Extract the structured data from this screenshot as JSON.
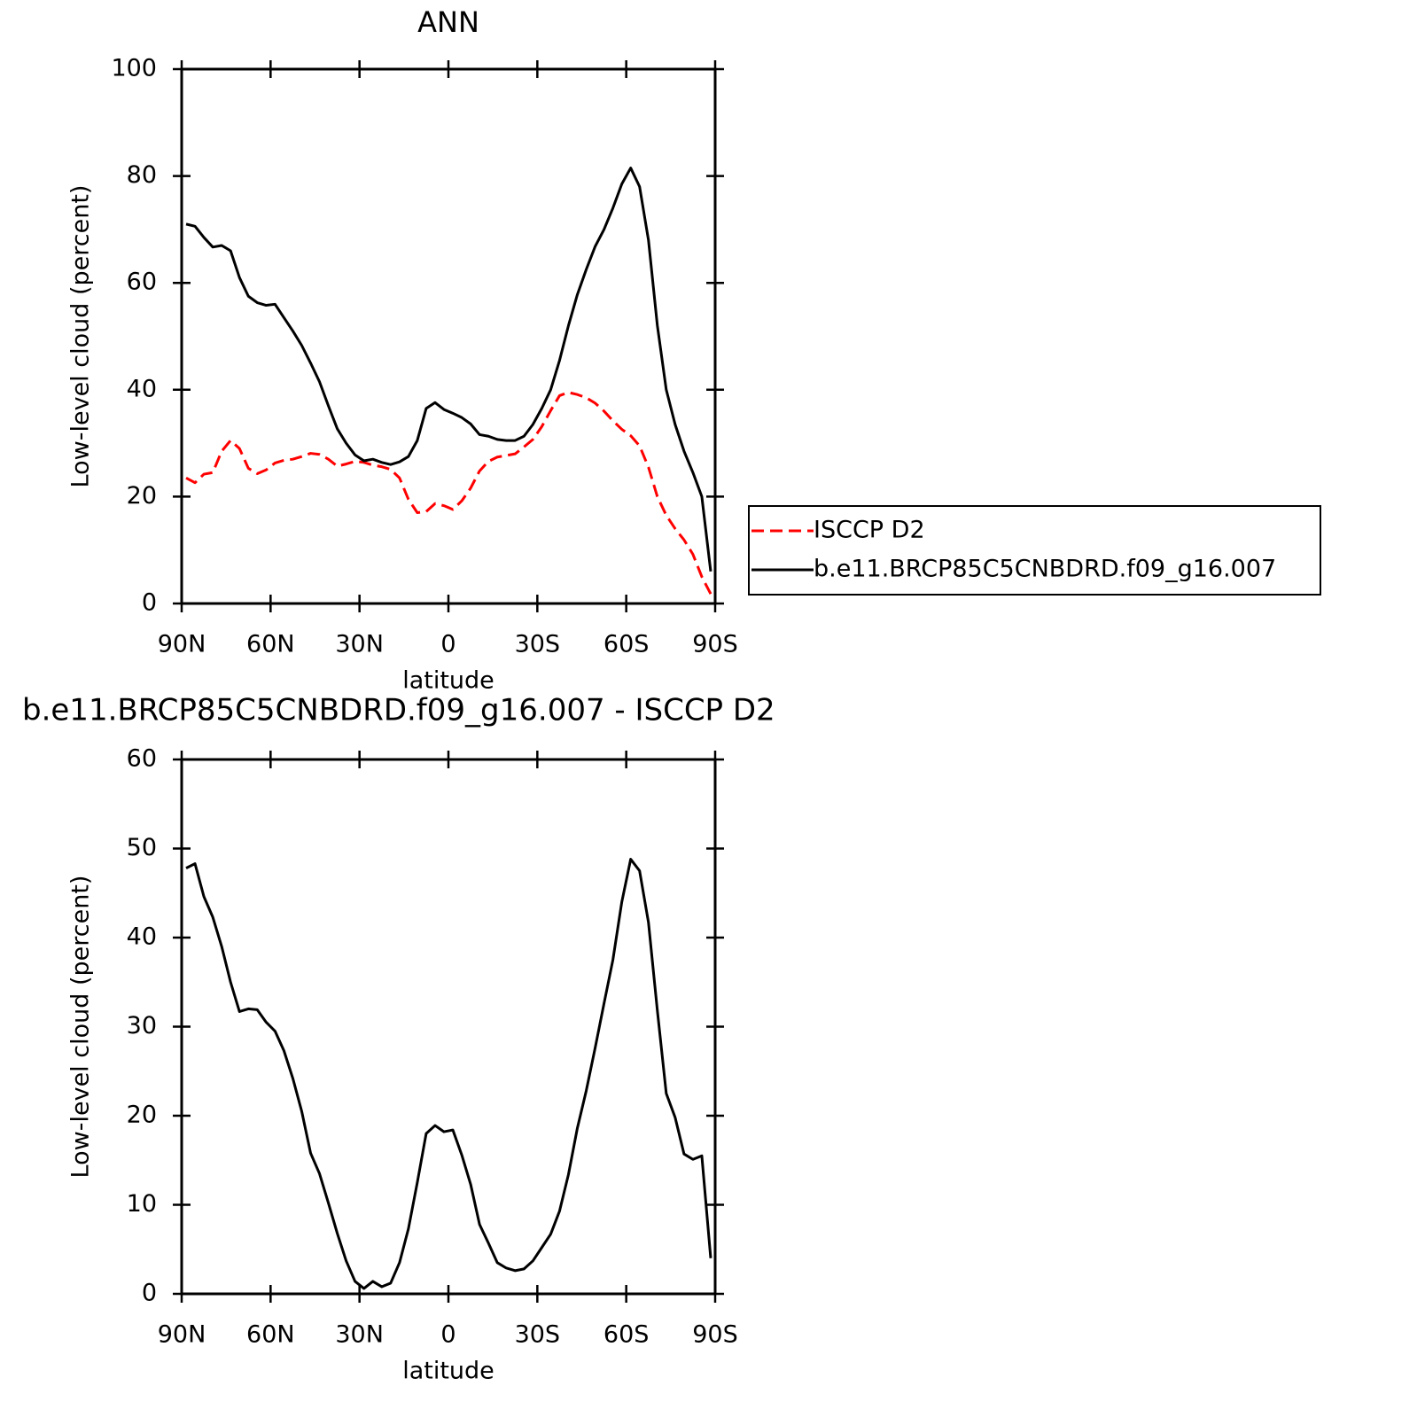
{
  "chart_data": [
    {
      "type": "line",
      "title": "ANN",
      "xlabel": "latitude",
      "ylabel": "Low-level cloud (percent)",
      "xlim": [
        90,
        -90
      ],
      "xticks": [
        {
          "value": 90,
          "label": "90N"
        },
        {
          "value": 60,
          "label": "60N"
        },
        {
          "value": 30,
          "label": "30N"
        },
        0,
        {
          "value": -30,
          "label": "30S"
        },
        {
          "value": -60,
          "label": "60S"
        },
        {
          "value": -90,
          "label": "90S"
        }
      ],
      "ylim": [
        0,
        100
      ],
      "yticks": [
        0,
        20,
        40,
        60,
        80,
        100
      ],
      "legend": "outside right",
      "x": [
        88.5,
        85.5,
        82.5,
        79.5,
        76.5,
        73.5,
        70.5,
        67.5,
        64.5,
        61.5,
        58.5,
        55.5,
        52.5,
        49.5,
        46.5,
        43.5,
        40.5,
        37.5,
        34.5,
        31.5,
        28.5,
        25.5,
        22.5,
        19.5,
        16.5,
        13.5,
        10.5,
        7.5,
        4.5,
        1.5,
        -1.5,
        -4.5,
        -7.5,
        -10.5,
        -13.5,
        -16.5,
        -19.5,
        -22.5,
        -25.5,
        -28.5,
        -31.5,
        -34.5,
        -37.5,
        -40.5,
        -43.5,
        -46.5,
        -49.5,
        -52.5,
        -55.5,
        -58.5,
        -61.5,
        -64.5,
        -67.5,
        -70.5,
        -73.5,
        -76.5,
        -79.5,
        -82.5,
        -85.5,
        -88.5
      ],
      "series": [
        {
          "name": "ISCCP D2",
          "color": "#ff0000",
          "dash": "dashed",
          "values": [
            23.5,
            22.6,
            24.2,
            24.5,
            28.5,
            30.5,
            29,
            25.3,
            24.3,
            25,
            26.3,
            26.8,
            27,
            27.5,
            28.1,
            27.9,
            27,
            25.7,
            26.1,
            26.6,
            26.4,
            25.9,
            25.6,
            25.1,
            23.5,
            19.5,
            17,
            17.2,
            18.7,
            18.3,
            17.6,
            19.2,
            21.6,
            24.8,
            26.6,
            27.4,
            27.7,
            28,
            29.3,
            30.7,
            33.1,
            36.1,
            38.9,
            39.5,
            39.1,
            38.5,
            37.5,
            36,
            34.2,
            32.6,
            31.4,
            29.5,
            25.5,
            20,
            16.5,
            14,
            11.9,
            9.2,
            5,
            1.8
          ]
        },
        {
          "name": "b.e11.BRCP85C5CNBDRD.f09_g16.007",
          "color": "#000000",
          "dash": "solid",
          "values": [
            71,
            70.6,
            68.5,
            66.7,
            67,
            66,
            61,
            57.5,
            56.3,
            55.8,
            56,
            53.5,
            51,
            48.3,
            45,
            41.5,
            37,
            32.7,
            30,
            27.8,
            26.7,
            27,
            26.4,
            26,
            26.5,
            27.5,
            30.5,
            36.5,
            37.6,
            36.3,
            35.6,
            34.8,
            33.6,
            31.6,
            31.3,
            30.7,
            30.5,
            30.5,
            31.3,
            33.5,
            36.5,
            40,
            45.5,
            52,
            57.8,
            62.5,
            66.8,
            70,
            74,
            78.5,
            81.5,
            78,
            68,
            52,
            40,
            33.5,
            28.5,
            24.5,
            20,
            6
          ]
        }
      ]
    },
    {
      "type": "line",
      "title": "b.e11.BRCP85C5CNBDRD.f09_g16.007 - ISCCP D2",
      "xlabel": "latitude",
      "ylabel": "Low-level cloud (percent)",
      "xlim": [
        90,
        -90
      ],
      "xticks": [
        {
          "value": 90,
          "label": "90N"
        },
        {
          "value": 60,
          "label": "60N"
        },
        {
          "value": 30,
          "label": "30N"
        },
        0,
        {
          "value": -30,
          "label": "30S"
        },
        {
          "value": -60,
          "label": "60S"
        },
        {
          "value": -90,
          "label": "90S"
        }
      ],
      "ylim": [
        0,
        60
      ],
      "yticks": [
        0,
        10,
        20,
        30,
        40,
        50,
        60
      ],
      "x": [
        88.5,
        85.5,
        82.5,
        79.5,
        76.5,
        73.5,
        70.5,
        67.5,
        64.5,
        61.5,
        58.5,
        55.5,
        52.5,
        49.5,
        46.5,
        43.5,
        40.5,
        37.5,
        34.5,
        31.5,
        28.5,
        25.5,
        22.5,
        19.5,
        16.5,
        13.5,
        10.5,
        7.5,
        4.5,
        1.5,
        -1.5,
        -4.5,
        -7.5,
        -10.5,
        -13.5,
        -16.5,
        -19.5,
        -22.5,
        -25.5,
        -28.5,
        -31.5,
        -34.5,
        -37.5,
        -40.5,
        -43.5,
        -46.5,
        -49.5,
        -52.5,
        -55.5,
        -58.5,
        -61.5,
        -64.5,
        -67.5,
        -70.5,
        -73.5,
        -76.5,
        -79.5,
        -82.5,
        -85.5,
        -88.5
      ],
      "series": [
        {
          "color": "#000000",
          "dash": "solid",
          "values": [
            47.8,
            48.3,
            44.6,
            42.3,
            39,
            35,
            31.7,
            32,
            31.9,
            30.5,
            29.5,
            27.3,
            24.2,
            20.5,
            15.8,
            13.5,
            10.2,
            6.8,
            3.7,
            1.4,
            0.6,
            1.4,
            0.8,
            1.2,
            3.5,
            7.3,
            12.5,
            18,
            18.9,
            18.2,
            18.4,
            15.6,
            12.3,
            7.8,
            5.7,
            3.5,
            2.9,
            2.6,
            2.8,
            3.7,
            5.2,
            6.7,
            9.3,
            13.4,
            18.6,
            22.8,
            27.6,
            32.6,
            37.5,
            44,
            48.8,
            47.5,
            41.7,
            31.8,
            22.5,
            19.8,
            15.7,
            15.1,
            15.5,
            4
          ]
        }
      ]
    }
  ]
}
